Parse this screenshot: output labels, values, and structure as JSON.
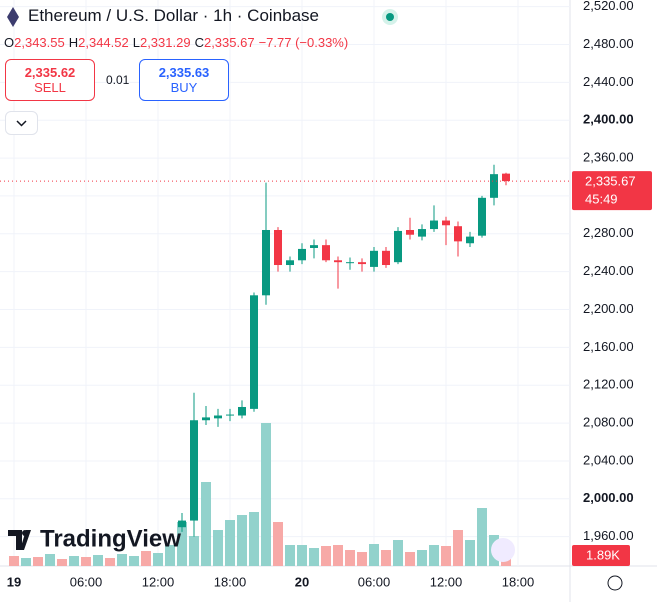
{
  "header": {
    "title": "Ethereum / U.S. Dollar · 1h · Coinbase",
    "ohlc": [
      {
        "key": "O",
        "value": "2,343.55"
      },
      {
        "key": "H",
        "value": "2,344.52"
      },
      {
        "key": "L",
        "value": "2,331.29"
      },
      {
        "key": "C",
        "value": "2,335.67"
      }
    ],
    "change": "−7.77 (−0.33%)"
  },
  "trade": {
    "sell_price": "2,335.62",
    "sell_label": "SELL",
    "quantity": "0.01",
    "buy_price": "2,335.63",
    "buy_label": "BUY"
  },
  "branding": "TradingView",
  "chart_data": {
    "type": "candlestick",
    "x": [
      "19 00:00",
      "19 01:00",
      "19 02:00",
      "19 03:00",
      "19 04:00",
      "19 05:00",
      "19 06:00",
      "19 07:00",
      "19 08:00",
      "19 09:00",
      "19 10:00",
      "19 11:00",
      "19 12:00",
      "19 13:00",
      "19 14:00",
      "19 15:00",
      "19 16:00",
      "19 17:00",
      "19 18:00",
      "19 19:00",
      "19 20:00",
      "19 21:00",
      "19 22:00",
      "19 23:00",
      "20 00:00",
      "20 01:00",
      "20 02:00",
      "20 03:00",
      "20 04:00",
      "20 05:00",
      "20 06:00",
      "20 07:00",
      "20 08:00",
      "20 09:00",
      "20 10:00",
      "20 11:00",
      "20 12:00",
      "20 13:00",
      "20 14:00",
      "20 15:00",
      "20 16:00",
      "20 17:00"
    ],
    "open": [
      null,
      null,
      null,
      null,
      null,
      null,
      null,
      null,
      null,
      null,
      null,
      null,
      null,
      null,
      1970,
      1977,
      2083,
      2085,
      2088,
      2088,
      2095,
      2215,
      2284,
      2247,
      2252,
      2265,
      2268,
      2252,
      2250,
      2250,
      2245,
      2262,
      2250,
      2284,
      2277,
      2285,
      2294,
      2288,
      2270,
      2278,
      2318,
      2343.55
    ],
    "high": [
      null,
      null,
      null,
      null,
      null,
      null,
      null,
      null,
      null,
      null,
      null,
      null,
      null,
      null,
      1985,
      2112,
      2098,
      2095,
      2095,
      2104,
      2218,
      2334,
      2287,
      2256,
      2270,
      2274,
      2274,
      2256,
      2255,
      2254,
      2266,
      2266,
      2287,
      2297,
      2290,
      2310,
      2298,
      2293,
      2282,
      2320,
      2353,
      2344.52
    ],
    "low": [
      null,
      null,
      null,
      null,
      null,
      null,
      null,
      null,
      null,
      null,
      null,
      null,
      null,
      null,
      1965,
      1960,
      2078,
      2076,
      2082,
      2085,
      2092,
      2205,
      2240,
      2240,
      2248,
      2254,
      2250,
      2222,
      2242,
      2240,
      2240,
      2244,
      2248,
      2274,
      2273,
      2282,
      2268,
      2256,
      2266,
      2276,
      2310,
      2331.29
    ],
    "close": [
      null,
      null,
      null,
      null,
      null,
      null,
      null,
      null,
      null,
      null,
      null,
      null,
      null,
      null,
      1977,
      2083,
      2086,
      2088,
      2089,
      2097,
      2215,
      2284,
      2247,
      2252,
      2264,
      2268,
      2252,
      2250,
      2250,
      2248,
      2262,
      2247,
      2283,
      2279,
      2285,
      2294,
      2289,
      2272,
      2277,
      2318,
      2343,
      2335.67
    ],
    "up_color": "#089981",
    "down_color": "#f23645",
    "volume": {
      "values": [
        1350,
        1080,
        1215,
        1620,
        945,
        1350,
        1215,
        1485,
        1080,
        1620,
        1350,
        2025,
        1755,
        2835,
        5940,
        4050,
        11340,
        4860,
        6210,
        6885,
        7290,
        19305,
        5940,
        2835,
        2835,
        2430,
        2700,
        2835,
        2160,
        1890,
        2970,
        2160,
        3510,
        1890,
        2160,
        2835,
        2700,
        4860,
        3510,
        7830,
        4185,
        1890
      ],
      "colors": [
        "#f7a9a7",
        "#92d2cc",
        "#f7a9a7",
        "#92d2cc",
        "#f7a9a7",
        "#92d2cc",
        "#f7a9a7",
        "#92d2cc",
        "#f7a9a7",
        "#92d2cc",
        "#92d2cc",
        "#f7a9a7",
        "#92d2cc",
        "#92d2cc",
        "#92d2cc",
        "#92d2cc",
        "#92d2cc",
        "#92d2cc",
        "#92d2cc",
        "#92d2cc",
        "#92d2cc",
        "#92d2cc",
        "#f7a9a7",
        "#92d2cc",
        "#92d2cc",
        "#92d2cc",
        "#f7a9a7",
        "#f7a9a7",
        "#f7a9a7",
        "#f7a9a7",
        "#92d2cc",
        "#f7a9a7",
        "#92d2cc",
        "#f7a9a7",
        "#92d2cc",
        "#92d2cc",
        "#f7a9a7",
        "#f7a9a7",
        "#92d2cc",
        "#92d2cc",
        "#92d2cc",
        "#f7a9a7"
      ],
      "vlim": [
        0,
        76410
      ],
      "last_label": "1.89K"
    },
    "last_price": {
      "value": 2335.67,
      "label": "2,335.67",
      "countdown": "45:49"
    },
    "ylim": [
      1929,
      2527
    ],
    "yticks": [
      {
        "value": 1960,
        "label": "1,960.00"
      },
      {
        "value": 2000,
        "label": "2,000.00"
      },
      {
        "value": 2040,
        "label": "2,040.00"
      },
      {
        "value": 2080,
        "label": "2,080.00"
      },
      {
        "value": 2120,
        "label": "2,120.00"
      },
      {
        "value": 2160,
        "label": "2,160.00"
      },
      {
        "value": 2200,
        "label": "2,200.00"
      },
      {
        "value": 2240,
        "label": "2,240.00"
      },
      {
        "value": 2280,
        "label": "2,280.00"
      },
      {
        "value": 2320,
        "label": "2,320.00"
      },
      {
        "value": 2360,
        "label": "2,360.00"
      },
      {
        "value": 2400,
        "label": "2,400.00"
      },
      {
        "value": 2440,
        "label": "2,440.00"
      },
      {
        "value": 2480,
        "label": "2,480.00"
      },
      {
        "value": 2520,
        "label": "2,520.00"
      }
    ],
    "xticks": [
      {
        "value": "19 00:00",
        "label": "19"
      },
      {
        "value": "19 06:00",
        "label": "06:00"
      },
      {
        "value": "19 12:00",
        "label": "12:00"
      },
      {
        "value": "19 18:00",
        "label": "18:00"
      },
      {
        "value": "20 00:00",
        "label": "20"
      },
      {
        "value": "20 06:00",
        "label": "06:00"
      },
      {
        "value": "20 12:00",
        "label": "12:00"
      },
      {
        "value": "20 18:00",
        "label": "18:00"
      }
    ],
    "grid": true
  }
}
